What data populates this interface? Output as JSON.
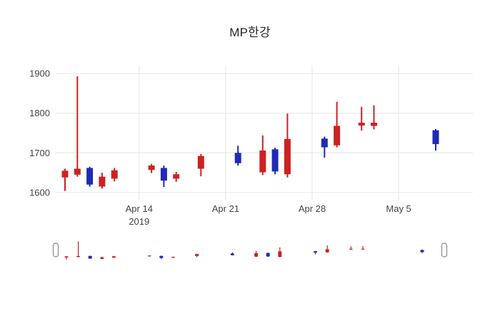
{
  "title": "MP한강",
  "chart_data": {
    "type": "candlestick",
    "title": "MP한강",
    "legend": "none",
    "grid": "on",
    "background_color": "#ffffff",
    "gridline_color": "#e6e6e6",
    "tick_color": "#444444",
    "increasing_color": "#cc2222",
    "decreasing_color": "#1f2bb5",
    "y_ticks": [
      1600,
      1700,
      1800,
      1900
    ],
    "ylim": [
      1580,
      1920
    ],
    "xlim": [
      "2019-04-07",
      "2019-05-12"
    ],
    "x_ticks": [
      {
        "date": "2019-04-14",
        "label": "Apr 14",
        "sublabel": "2019"
      },
      {
        "date": "2019-04-21",
        "label": "Apr 21",
        "sublabel": ""
      },
      {
        "date": "2019-04-28",
        "label": "Apr 28",
        "sublabel": ""
      },
      {
        "date": "2019-05-05",
        "label": "May 5",
        "sublabel": ""
      }
    ],
    "candles": [
      {
        "date": "2019-04-08",
        "open": 1638,
        "high": 1660,
        "low": 1604,
        "close": 1655
      },
      {
        "date": "2019-04-09",
        "open": 1645,
        "high": 1893,
        "low": 1640,
        "close": 1660
      },
      {
        "date": "2019-04-10",
        "open": 1662,
        "high": 1665,
        "low": 1615,
        "close": 1620
      },
      {
        "date": "2019-04-11",
        "open": 1615,
        "high": 1650,
        "low": 1610,
        "close": 1640
      },
      {
        "date": "2019-04-12",
        "open": 1635,
        "high": 1662,
        "low": 1628,
        "close": 1656
      },
      {
        "date": "2019-04-15",
        "open": 1657,
        "high": 1672,
        "low": 1649,
        "close": 1668
      },
      {
        "date": "2019-04-16",
        "open": 1662,
        "high": 1668,
        "low": 1614,
        "close": 1630
      },
      {
        "date": "2019-04-17",
        "open": 1635,
        "high": 1652,
        "low": 1627,
        "close": 1646
      },
      {
        "date": "2019-04-19",
        "open": 1660,
        "high": 1697,
        "low": 1641,
        "close": 1692
      },
      {
        "date": "2019-04-22",
        "open": 1700,
        "high": 1718,
        "low": 1668,
        "close": 1674
      },
      {
        "date": "2019-04-24",
        "open": 1651,
        "high": 1744,
        "low": 1644,
        "close": 1706
      },
      {
        "date": "2019-04-25",
        "open": 1709,
        "high": 1713,
        "low": 1646,
        "close": 1653
      },
      {
        "date": "2019-04-26",
        "open": 1646,
        "high": 1799,
        "low": 1638,
        "close": 1735
      },
      {
        "date": "2019-04-29",
        "open": 1736,
        "high": 1741,
        "low": 1688,
        "close": 1714
      },
      {
        "date": "2019-04-30",
        "open": 1719,
        "high": 1829,
        "low": 1714,
        "close": 1768
      },
      {
        "date": "2019-05-02",
        "open": 1769,
        "high": 1816,
        "low": 1756,
        "close": 1776
      },
      {
        "date": "2019-05-03",
        "open": 1768,
        "high": 1820,
        "low": 1759,
        "close": 1776
      },
      {
        "date": "2019-05-08",
        "open": 1757,
        "high": 1760,
        "low": 1706,
        "close": 1722
      }
    ],
    "rangeslider": {
      "visible": true,
      "start_date": "2019-04-07",
      "end_date": "2019-05-12"
    }
  }
}
